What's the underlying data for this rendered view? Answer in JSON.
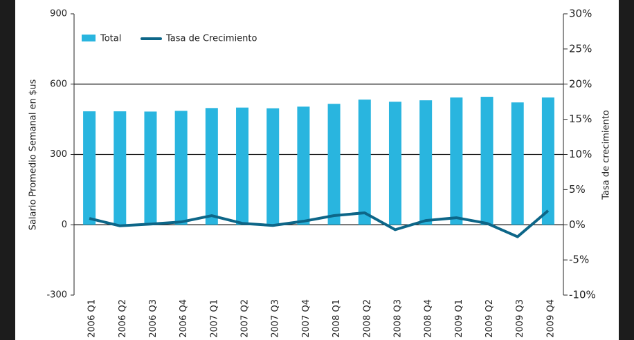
{
  "chart_data": {
    "type": "bar_line",
    "categories": [
      "2006 Q1",
      "2006 Q2",
      "2006 Q3",
      "2006 Q4",
      "2007 Q1",
      "2007 Q2",
      "2007 Q3",
      "2007 Q4",
      "2008 Q1",
      "2008 Q2",
      "2008 Q3",
      "2008 Q4",
      "2009 Q1",
      "2009 Q2",
      "2009 Q3",
      "2009 Q4"
    ],
    "series": [
      {
        "name": "Total",
        "type": "bar",
        "color": "#29b5df",
        "values": [
          484,
          484,
          483,
          486,
          498,
          500,
          497,
          504,
          516,
          534,
          525,
          531,
          543,
          546,
          522,
          543
        ]
      },
      {
        "name": "Tasa de Crecimiento",
        "type": "line",
        "axis": "y2",
        "color": "#0d6688",
        "values": [
          0.9,
          -0.15,
          0.1,
          0.4,
          1.3,
          0.2,
          -0.1,
          0.5,
          1.3,
          1.7,
          -0.7,
          0.6,
          1.0,
          0.2,
          -1.7,
          2.0
        ]
      }
    ],
    "y_label": "Salario Promedio Semanal en $us",
    "y2_label": "Tasa de crecimiento",
    "ylim": [
      -300,
      900
    ],
    "yticks": [
      -300,
      0,
      300,
      600,
      900
    ],
    "y2lim": [
      -10,
      30
    ],
    "y2ticks": [
      {
        "value": -10,
        "label": "-10%"
      },
      {
        "value": -5,
        "label": "-5%"
      },
      {
        "value": 0,
        "label": "0%"
      },
      {
        "value": 5,
        "label": "5%"
      },
      {
        "value": 10,
        "label": "10%"
      },
      {
        "value": 15,
        "label": "15%"
      },
      {
        "value": 20,
        "label": "20%"
      },
      {
        "value": 25,
        "label": "25%"
      },
      {
        "value": 30,
        "label": "30%"
      }
    ],
    "grid": true,
    "legend": "top-left"
  }
}
